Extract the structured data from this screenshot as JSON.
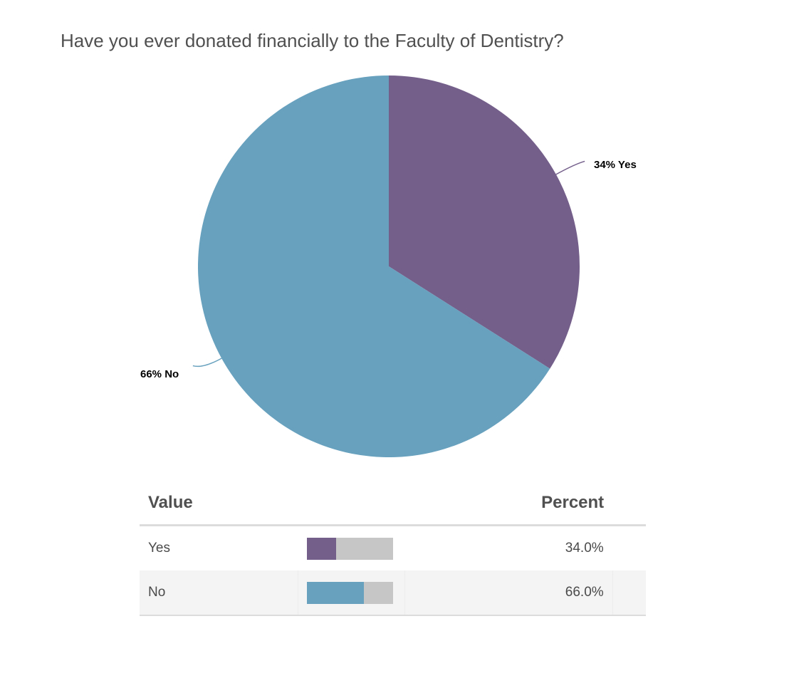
{
  "title": "Have you ever donated financially to the Faculty of Dentistry?",
  "chart_data": {
    "type": "pie",
    "title": "Have you ever donated financially to the Faculty of Dentistry?",
    "slices": [
      {
        "label": "Yes",
        "value": 34,
        "display": "34% Yes",
        "color": "#745f8b"
      },
      {
        "label": "No",
        "value": 66,
        "display": "66% No",
        "color": "#67a1be"
      }
    ]
  },
  "table": {
    "headers": {
      "value": "Value",
      "percent": "Percent"
    },
    "track_color": "#c6c6c6",
    "rows": [
      {
        "label": "Yes",
        "percent_text": "34.0%",
        "fraction": 0.34,
        "color": "#745f8b"
      },
      {
        "label": "No",
        "percent_text": "66.0%",
        "fraction": 0.66,
        "color": "#67a1be"
      }
    ]
  }
}
